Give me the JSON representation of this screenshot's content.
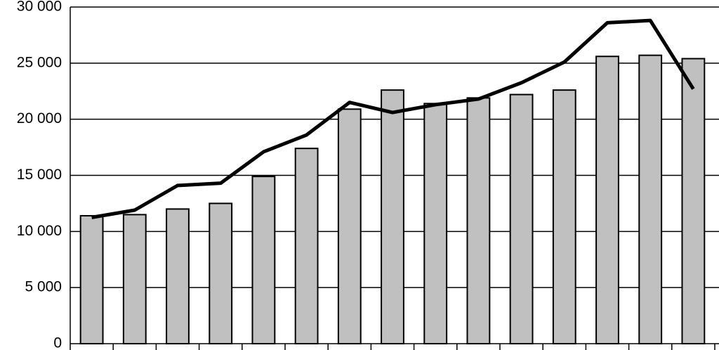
{
  "chart_data": {
    "type": "bar-line",
    "categories": [
      null,
      null,
      null,
      null,
      null,
      null,
      null,
      null,
      null,
      null,
      null,
      null,
      null,
      null,
      null
    ],
    "series": [
      {
        "type": "bar",
        "color": "#c0c0c0",
        "values": [
          11400,
          11500,
          12000,
          12500,
          14900,
          17400,
          20900,
          22600,
          21400,
          21900,
          22200,
          22600,
          25600,
          25700,
          25400
        ]
      },
      {
        "type": "line",
        "color": "#000000",
        "values": [
          11250,
          11900,
          14100,
          14300,
          17100,
          18600,
          21500,
          20600,
          21300,
          21800,
          23250,
          25100,
          28600,
          28800,
          22700
        ]
      }
    ],
    "ylim": [
      0,
      30000
    ],
    "yticks": [
      {
        "value": 0,
        "label": "0"
      },
      {
        "value": 5000,
        "label": "5 000"
      },
      {
        "value": 10000,
        "label": "10 000"
      },
      {
        "value": 15000,
        "label": "15 000"
      },
      {
        "value": 20000,
        "label": "20 000"
      },
      {
        "value": 25000,
        "label": "25 000"
      },
      {
        "value": 30000,
        "label": "30 000"
      }
    ],
    "grid": true
  }
}
